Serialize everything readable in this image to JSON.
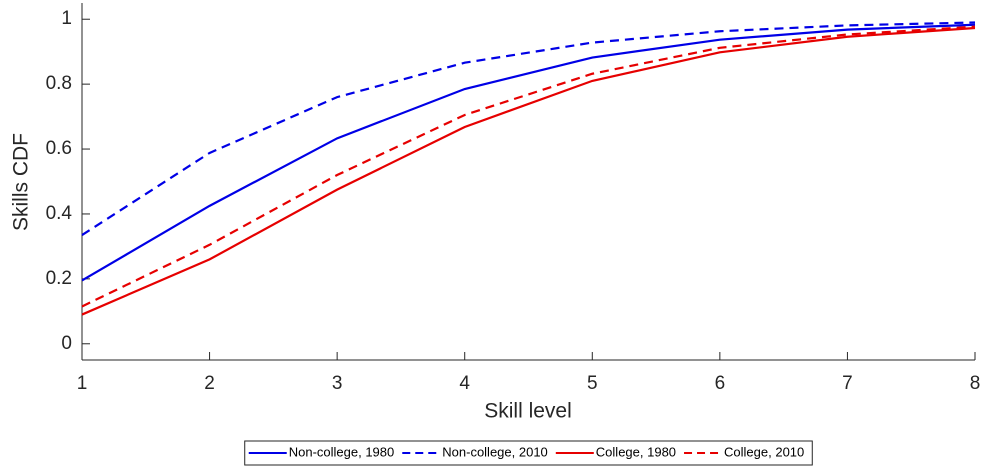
{
  "chart_data": {
    "type": "line",
    "x_label": "Skill level",
    "y_label": "Skills CDF",
    "x": [
      1,
      2,
      3,
      4,
      5,
      6,
      7,
      8
    ],
    "series": [
      {
        "name": "Non-college, 1980",
        "color": "#0000e6",
        "linestyle": "solid",
        "values": [
          0.195,
          0.425,
          0.633,
          0.785,
          0.882,
          0.937,
          0.968,
          0.983
        ]
      },
      {
        "name": "Non-college, 2010",
        "color": "#0000e6",
        "linestyle": "dashed",
        "values": [
          0.335,
          0.588,
          0.76,
          0.866,
          0.928,
          0.963,
          0.981,
          0.99
        ]
      },
      {
        "name": "College, 1980",
        "color": "#e60000",
        "linestyle": "solid",
        "values": [
          0.09,
          0.26,
          0.475,
          0.668,
          0.81,
          0.898,
          0.946,
          0.973
        ]
      },
      {
        "name": "College, 2010",
        "color": "#e60000",
        "linestyle": "dashed",
        "values": [
          0.115,
          0.305,
          0.52,
          0.705,
          0.832,
          0.912,
          0.953,
          0.977
        ]
      }
    ],
    "xlim": [
      1,
      8
    ],
    "xticks": [
      1,
      2,
      3,
      4,
      5,
      6,
      7,
      8
    ],
    "ylim": [
      -0.05,
      1.05
    ],
    "yticks": [
      0,
      0.2,
      0.4,
      0.6,
      0.8,
      1
    ],
    "legend": "bottom"
  }
}
